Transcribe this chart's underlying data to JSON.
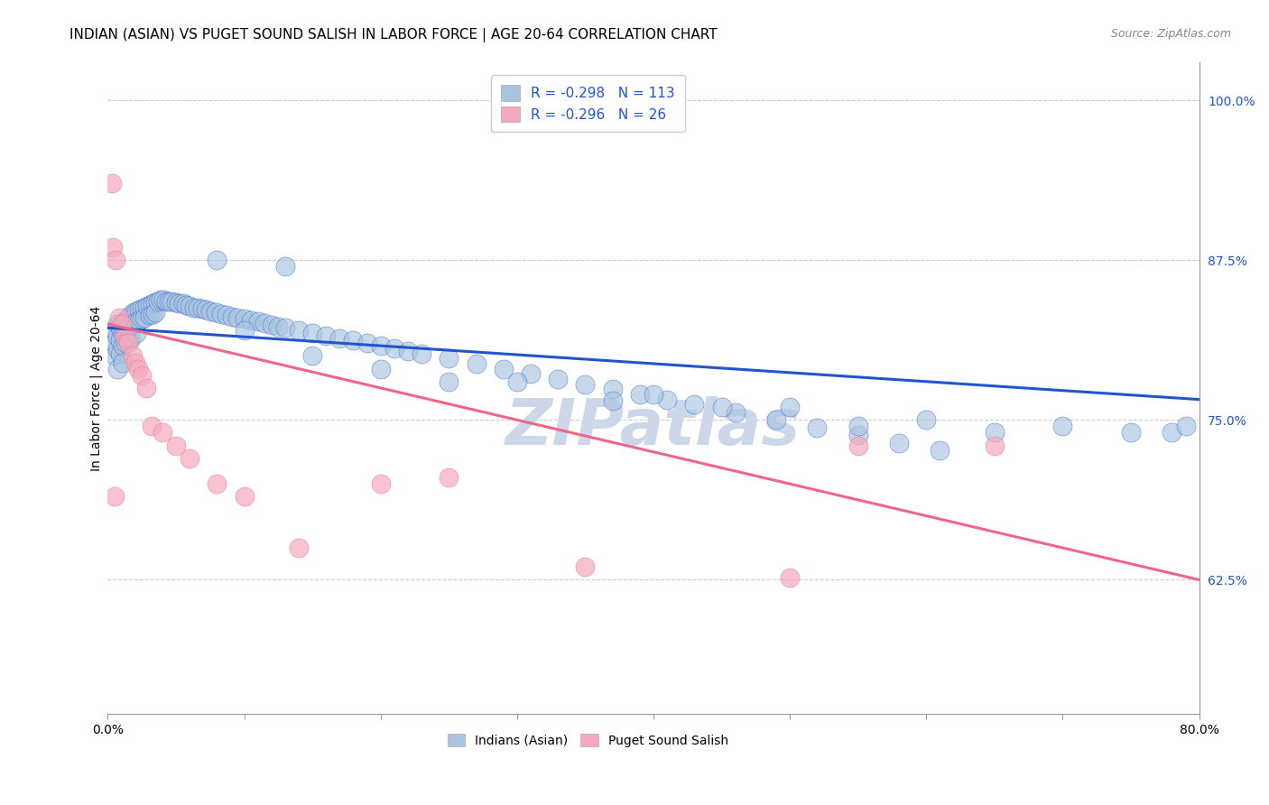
{
  "title": "INDIAN (ASIAN) VS PUGET SOUND SALISH IN LABOR FORCE | AGE 20-64 CORRELATION CHART",
  "source": "Source: ZipAtlas.com",
  "ylabel": "In Labor Force | Age 20-64",
  "xlim": [
    0.0,
    0.8
  ],
  "ylim": [
    0.52,
    1.03
  ],
  "xticks": [
    0.0,
    0.1,
    0.2,
    0.3,
    0.4,
    0.5,
    0.6,
    0.7,
    0.8
  ],
  "xticklabels": [
    "0.0%",
    "",
    "",
    "",
    "",
    "",
    "",
    "",
    "80.0%"
  ],
  "yticks_right": [
    0.625,
    0.75,
    0.875,
    1.0
  ],
  "ytick_right_labels": [
    "62.5%",
    "75.0%",
    "87.5%",
    "100.0%"
  ],
  "blue_R": "-0.298",
  "blue_N": "113",
  "pink_R": "-0.296",
  "pink_N": "26",
  "blue_color": "#A8C4E0",
  "pink_color": "#F4AABC",
  "blue_line_color": "#2255CC",
  "pink_line_color": "#EE6688",
  "legend_label_blue": "Indians (Asian)",
  "legend_label_pink": "Puget Sound Salish",
  "watermark": "ZIPatlas",
  "blue_scatter_x": [
    0.005,
    0.005,
    0.005,
    0.007,
    0.007,
    0.007,
    0.007,
    0.009,
    0.009,
    0.009,
    0.011,
    0.011,
    0.011,
    0.011,
    0.013,
    0.013,
    0.013,
    0.015,
    0.015,
    0.015,
    0.017,
    0.017,
    0.017,
    0.019,
    0.019,
    0.021,
    0.021,
    0.021,
    0.023,
    0.023,
    0.025,
    0.025,
    0.027,
    0.027,
    0.029,
    0.031,
    0.031,
    0.033,
    0.033,
    0.035,
    0.035,
    0.037,
    0.039,
    0.041,
    0.043,
    0.045,
    0.047,
    0.05,
    0.052,
    0.055,
    0.057,
    0.06,
    0.063,
    0.066,
    0.069,
    0.072,
    0.075,
    0.079,
    0.083,
    0.087,
    0.091,
    0.095,
    0.1,
    0.105,
    0.11,
    0.115,
    0.12,
    0.125,
    0.13,
    0.14,
    0.15,
    0.16,
    0.17,
    0.18,
    0.19,
    0.2,
    0.21,
    0.22,
    0.23,
    0.25,
    0.27,
    0.29,
    0.31,
    0.33,
    0.35,
    0.37,
    0.39,
    0.41,
    0.43,
    0.46,
    0.49,
    0.52,
    0.55,
    0.58,
    0.61,
    0.13,
    0.08,
    0.2,
    0.3,
    0.1,
    0.25,
    0.4,
    0.5,
    0.6,
    0.37,
    0.15,
    0.55,
    0.7,
    0.45,
    0.65,
    0.75,
    0.78,
    0.79
  ],
  "blue_scatter_y": [
    0.82,
    0.81,
    0.8,
    0.825,
    0.815,
    0.805,
    0.79,
    0.822,
    0.812,
    0.802,
    0.825,
    0.818,
    0.808,
    0.795,
    0.828,
    0.82,
    0.81,
    0.83,
    0.822,
    0.812,
    0.832,
    0.824,
    0.814,
    0.834,
    0.826,
    0.835,
    0.827,
    0.818,
    0.836,
    0.828,
    0.837,
    0.829,
    0.838,
    0.83,
    0.839,
    0.84,
    0.832,
    0.841,
    0.833,
    0.842,
    0.834,
    0.843,
    0.844,
    0.844,
    0.843,
    0.843,
    0.843,
    0.842,
    0.841,
    0.841,
    0.84,
    0.839,
    0.838,
    0.838,
    0.837,
    0.836,
    0.835,
    0.834,
    0.833,
    0.832,
    0.831,
    0.83,
    0.829,
    0.828,
    0.827,
    0.826,
    0.824,
    0.823,
    0.822,
    0.82,
    0.818,
    0.816,
    0.814,
    0.812,
    0.81,
    0.808,
    0.806,
    0.804,
    0.802,
    0.798,
    0.794,
    0.79,
    0.786,
    0.782,
    0.778,
    0.774,
    0.77,
    0.766,
    0.762,
    0.756,
    0.75,
    0.744,
    0.738,
    0.732,
    0.726,
    0.87,
    0.875,
    0.79,
    0.78,
    0.82,
    0.78,
    0.77,
    0.76,
    0.75,
    0.765,
    0.8,
    0.745,
    0.745,
    0.76,
    0.74,
    0.74,
    0.74,
    0.745
  ],
  "pink_scatter_x": [
    0.003,
    0.004,
    0.006,
    0.008,
    0.01,
    0.012,
    0.015,
    0.018,
    0.02,
    0.022,
    0.025,
    0.028,
    0.032,
    0.04,
    0.05,
    0.06,
    0.08,
    0.1,
    0.14,
    0.2,
    0.25,
    0.35,
    0.5,
    0.55,
    0.65,
    0.005
  ],
  "pink_scatter_y": [
    0.935,
    0.885,
    0.875,
    0.83,
    0.825,
    0.815,
    0.81,
    0.8,
    0.795,
    0.79,
    0.785,
    0.775,
    0.745,
    0.74,
    0.73,
    0.72,
    0.7,
    0.69,
    0.65,
    0.7,
    0.705,
    0.635,
    0.627,
    0.73,
    0.73,
    0.69
  ],
  "blue_line_x": [
    0.0,
    0.8
  ],
  "blue_line_y": [
    0.822,
    0.766
  ],
  "pink_line_x": [
    0.0,
    0.8
  ],
  "pink_line_y": [
    0.825,
    0.625
  ],
  "background_color": "#ffffff",
  "grid_color": "#cccccc",
  "title_fontsize": 11,
  "axis_label_fontsize": 10,
  "tick_fontsize": 10,
  "watermark_color": "#ccd8ea",
  "watermark_fontsize": 52
}
